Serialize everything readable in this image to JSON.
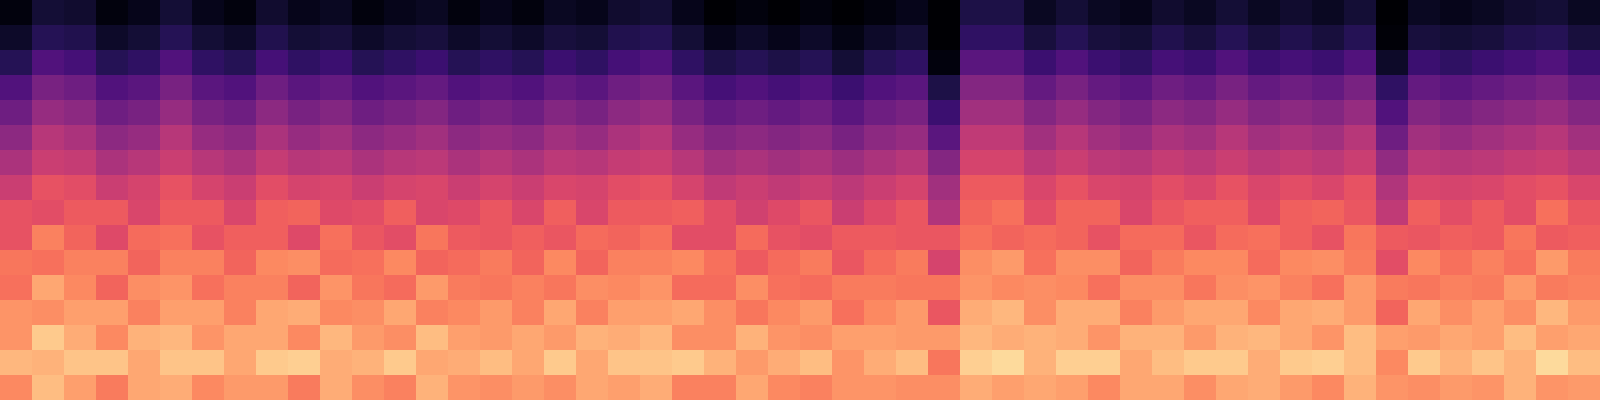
{
  "chart_data": {
    "type": "heatmap",
    "color": "magma",
    "clim": [
      -80,
      0
    ],
    "tick_labels": false,
    "cells": [
      [
        -78,
        -72,
        -73,
        -78,
        -76,
        -72,
        -76,
        -78,
        -73,
        -76,
        -75,
        -78,
        -76,
        -75,
        -78,
        -76,
        -78,
        -75,
        -76,
        -73,
        -72,
        -76,
        -80,
        -78,
        -80,
        -78,
        -80,
        -78,
        -76,
        -80,
        -70,
        -70,
        -75,
        -72,
        -75,
        -76,
        -73,
        -75,
        -72,
        -75,
        -73,
        -75,
        -72,
        -80,
        -75,
        -76,
        -75,
        -73,
        -72,
        -75
      ],
      [
        -74,
        -68,
        -69,
        -74,
        -72,
        -68,
        -72,
        -74,
        -69,
        -72,
        -71,
        -74,
        -72,
        -71,
        -74,
        -72,
        -74,
        -71,
        -72,
        -69,
        -68,
        -72,
        -76,
        -74,
        -76,
        -74,
        -77,
        -74,
        -72,
        -80,
        -66,
        -66,
        -71,
        -68,
        -71,
        -72,
        -69,
        -71,
        -68,
        -71,
        -69,
        -71,
        -68,
        -79,
        -71,
        -72,
        -71,
        -69,
        -68,
        -71
      ],
      [
        -68,
        -60,
        -62,
        -68,
        -66,
        -60,
        -66,
        -68,
        -62,
        -66,
        -64,
        -68,
        -66,
        -64,
        -68,
        -66,
        -68,
        -64,
        -66,
        -62,
        -60,
        -66,
        -70,
        -68,
        -70,
        -68,
        -72,
        -68,
        -66,
        -78,
        -58,
        -58,
        -64,
        -60,
        -64,
        -66,
        -62,
        -64,
        -60,
        -64,
        -62,
        -64,
        -60,
        -74,
        -64,
        -66,
        -64,
        -62,
        -60,
        -64
      ],
      [
        -60,
        -52,
        -54,
        -60,
        -58,
        -52,
        -58,
        -60,
        -54,
        -58,
        -56,
        -60,
        -58,
        -56,
        -60,
        -58,
        -60,
        -56,
        -58,
        -54,
        -52,
        -58,
        -62,
        -60,
        -62,
        -60,
        -64,
        -60,
        -58,
        -70,
        -50,
        -50,
        -56,
        -52,
        -56,
        -58,
        -54,
        -56,
        -52,
        -56,
        -54,
        -56,
        -52,
        -66,
        -56,
        -58,
        -56,
        -54,
        -52,
        -56
      ],
      [
        -54,
        -46,
        -48,
        -54,
        -52,
        -46,
        -52,
        -54,
        -48,
        -52,
        -50,
        -54,
        -52,
        -50,
        -54,
        -52,
        -54,
        -50,
        -52,
        -48,
        -46,
        -52,
        -56,
        -54,
        -56,
        -54,
        -58,
        -54,
        -52,
        -64,
        -44,
        -44,
        -50,
        -46,
        -50,
        -52,
        -48,
        -50,
        -46,
        -50,
        -48,
        -50,
        -46,
        -60,
        -50,
        -52,
        -50,
        -48,
        -46,
        -50
      ],
      [
        -48,
        -40,
        -42,
        -48,
        -46,
        -40,
        -46,
        -48,
        -42,
        -46,
        -44,
        -48,
        -46,
        -44,
        -48,
        -46,
        -48,
        -44,
        -46,
        -42,
        -40,
        -46,
        -50,
        -48,
        -50,
        -48,
        -52,
        -48,
        -46,
        -58,
        -38,
        -38,
        -44,
        -40,
        -44,
        -46,
        -42,
        -44,
        -40,
        -44,
        -42,
        -44,
        -40,
        -54,
        -44,
        -46,
        -44,
        -42,
        -40,
        -44
      ],
      [
        -42,
        -36,
        -37,
        -42,
        -40,
        -36,
        -40,
        -42,
        -37,
        -40,
        -39,
        -42,
        -40,
        -39,
        -42,
        -40,
        -42,
        -39,
        -40,
        -37,
        -36,
        -40,
        -44,
        -42,
        -44,
        -42,
        -45,
        -42,
        -40,
        -50,
        -34,
        -34,
        -39,
        -36,
        -39,
        -40,
        -37,
        -39,
        -36,
        -39,
        -37,
        -39,
        -36,
        -47,
        -39,
        -40,
        -39,
        -37,
        -36,
        -39
      ],
      [
        -36,
        -30,
        -31,
        -36,
        -34,
        -30,
        -34,
        -36,
        -31,
        -34,
        -33,
        -36,
        -34,
        -33,
        -36,
        -34,
        -36,
        -33,
        -34,
        -31,
        -30,
        -34,
        -38,
        -36,
        -38,
        -36,
        -39,
        -36,
        -34,
        -44,
        -28,
        -28,
        -33,
        -30,
        -33,
        -34,
        -31,
        -33,
        -30,
        -33,
        -31,
        -33,
        -30,
        -41,
        -33,
        -34,
        -33,
        -31,
        -30,
        -33
      ],
      [
        -30,
        -31,
        -28,
        -28,
        -33,
        -28,
        -28,
        -33,
        -27,
        -26,
        -32,
        -31,
        -27,
        -33,
        -32,
        -29,
        -33,
        -27,
        -33,
        -28,
        -28,
        -27,
        -31,
        -35,
        -32,
        -29,
        -36,
        -32,
        -29,
        -41,
        -26,
        -24,
        -31,
        -26,
        -26,
        -33,
        -29,
        -27,
        -27,
        -32,
        -27,
        -26,
        -29,
        -38,
        -27,
        -31,
        -28,
        -31,
        -24,
        -29
      ],
      [
        -30,
        -21,
        -26,
        -32,
        -25,
        -24,
        -30,
        -27,
        -27,
        -32,
        -24,
        -29,
        -31,
        -23,
        -28,
        -29,
        -27,
        -29,
        -25,
        -26,
        -24,
        -31,
        -31,
        -25,
        -30,
        -31,
        -28,
        -28,
        -29,
        -29,
        -24,
        -26,
        -25,
        -26,
        -30,
        -25,
        -25,
        -29,
        -25,
        -24,
        -27,
        -30,
        -23,
        -28,
        -29,
        -27,
        -28,
        -23,
        -28,
        -27
      ],
      [
        -23,
        -24,
        -21,
        -21,
        -26,
        -21,
        -21,
        -26,
        -20,
        -19,
        -25,
        -24,
        -20,
        -26,
        -25,
        -22,
        -26,
        -20,
        -26,
        -21,
        -21,
        -20,
        -24,
        -28,
        -25,
        -22,
        -29,
        -25,
        -22,
        -34,
        -19,
        -17,
        -24,
        -19,
        -19,
        -26,
        -22,
        -20,
        -20,
        -25,
        -20,
        -19,
        -22,
        -31,
        -20,
        -24,
        -21,
        -24,
        -17,
        -22
      ],
      [
        -24,
        -15,
        -20,
        -26,
        -19,
        -18,
        -24,
        -21,
        -21,
        -26,
        -18,
        -23,
        -25,
        -17,
        -22,
        -23,
        -21,
        -23,
        -19,
        -20,
        -18,
        -25,
        -25,
        -19,
        -24,
        -25,
        -22,
        -22,
        -23,
        -23,
        -18,
        -20,
        -19,
        -20,
        -24,
        -19,
        -19,
        -23,
        -19,
        -18,
        -21,
        -24,
        -17,
        -22,
        -23,
        -21,
        -22,
        -17,
        -22,
        -21
      ],
      [
        -18,
        -19,
        -16,
        -16,
        -21,
        -16,
        -16,
        -21,
        -15,
        -14,
        -20,
        -19,
        -15,
        -21,
        -20,
        -17,
        -21,
        -15,
        -21,
        -16,
        -16,
        -15,
        -19,
        -23,
        -20,
        -17,
        -24,
        -20,
        -17,
        -29,
        -14,
        -12,
        -19,
        -14,
        -14,
        -21,
        -17,
        -15,
        -15,
        -20,
        -15,
        -14,
        -17,
        -26,
        -15,
        -19,
        -16,
        -19,
        -12,
        -17
      ],
      [
        -18,
        -9,
        -14,
        -20,
        -13,
        -12,
        -18,
        -15,
        -15,
        -20,
        -12,
        -17,
        -19,
        -11,
        -16,
        -17,
        -15,
        -17,
        -13,
        -14,
        -12,
        -19,
        -19,
        -13,
        -18,
        -19,
        -16,
        -16,
        -17,
        -17,
        -12,
        -14,
        -13,
        -14,
        -18,
        -13,
        -13,
        -17,
        -13,
        -12,
        -15,
        -18,
        -11,
        -16,
        -17,
        -15,
        -16,
        -11,
        -16,
        -15
      ],
      [
        -12,
        -13,
        -10,
        -10,
        -15,
        -10,
        -10,
        -15,
        -9,
        -8,
        -14,
        -13,
        -9,
        -15,
        -14,
        -11,
        -15,
        -9,
        -15,
        -10,
        -10,
        -9,
        -13,
        -17,
        -14,
        -11,
        -18,
        -14,
        -11,
        -23,
        -8,
        -6,
        -13,
        -8,
        -8,
        -15,
        -11,
        -9,
        -9,
        -14,
        -9,
        -8,
        -11,
        -20,
        -9,
        -13,
        -10,
        -13,
        -6,
        -11
      ],
      [
        -20,
        -11,
        -16,
        -22,
        -15,
        -14,
        -20,
        -17,
        -17,
        -22,
        -14,
        -19,
        -21,
        -13,
        -18,
        -19,
        -17,
        -19,
        -15,
        -16,
        -14,
        -21,
        -21,
        -15,
        -20,
        -21,
        -18,
        -18,
        -19,
        -19,
        -14,
        -16,
        -15,
        -16,
        -20,
        -15,
        -15,
        -19,
        -15,
        -14,
        -17,
        -20,
        -13,
        -18,
        -19,
        -17,
        -18,
        -13,
        -18,
        -17
      ]
    ]
  }
}
